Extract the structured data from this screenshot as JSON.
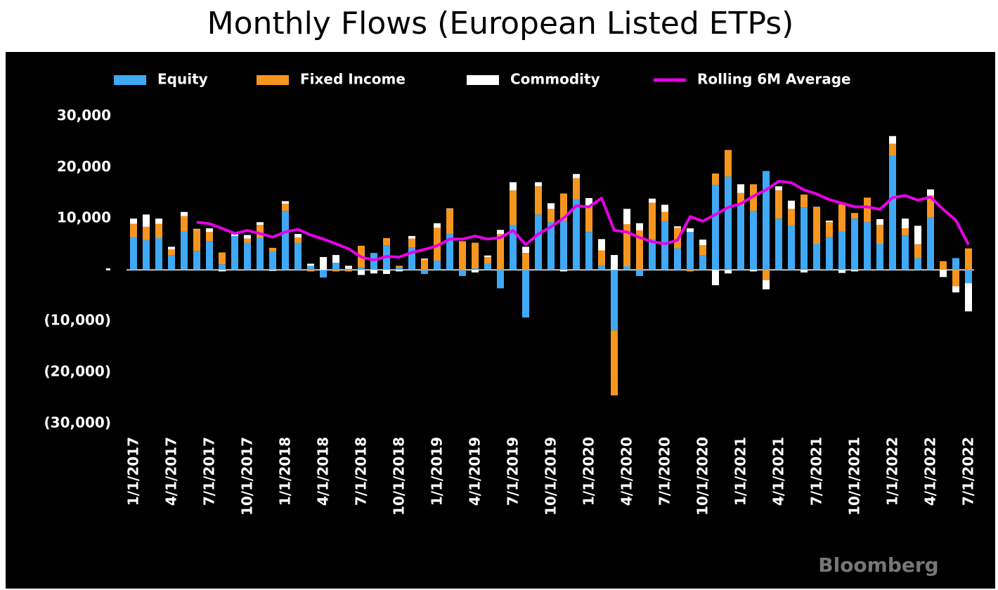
{
  "chart_data": {
    "type": "bar",
    "stacked": true,
    "title": "Monthly Flows (European Listed ETPs)",
    "watermark": "Bloomberg",
    "categories": [
      "1/1/2017",
      null,
      null,
      "4/1/2017",
      null,
      null,
      "7/1/2017",
      null,
      null,
      "10/1/2017",
      null,
      null,
      "1/1/2018",
      null,
      null,
      "4/1/2018",
      null,
      null,
      "7/1/2018",
      null,
      null,
      "10/1/2018",
      null,
      null,
      "1/1/2019",
      null,
      null,
      "4/1/2019",
      null,
      null,
      "7/1/2019",
      null,
      null,
      "10/1/2019",
      null,
      null,
      "1/1/2020",
      null,
      null,
      "4/1/2020",
      null,
      null,
      "7/1/2020",
      null,
      null,
      "10/1/2020",
      null,
      null,
      "1/1/2021",
      null,
      null,
      "4/1/2021",
      null,
      null,
      "7/1/2021",
      null,
      null,
      "10/1/2021",
      null,
      null,
      "1/1/2022",
      null,
      null,
      "4/1/2022",
      null,
      null,
      "7/1/2022"
    ],
    "series": [
      {
        "name": "Equity",
        "color": "#3fa9f5",
        "values": [
          6400,
          5800,
          6200,
          2900,
          7500,
          3700,
          5600,
          1100,
          6600,
          5300,
          6200,
          3600,
          11500,
          5300,
          800,
          -1500,
          1400,
          200,
          500,
          3300,
          4800,
          500,
          4400,
          -800,
          1800,
          7000,
          -1200,
          300,
          1200,
          -3600,
          8800,
          -9300,
          10800,
          9300,
          9600,
          13800,
          7400,
          800,
          -11800,
          700,
          -1200,
          6000,
          9500,
          4200,
          7400,
          2900,
          16600,
          18200,
          12500,
          11500,
          19300,
          10000,
          8600,
          12200,
          5100,
          6400,
          7500,
          10000,
          9300,
          5100,
          22300,
          6700,
          2300,
          10300,
          0,
          2300,
          -2600
        ]
      },
      {
        "name": "Fixed Income",
        "color": "#f7961e",
        "values": [
          2600,
          2600,
          2800,
          1100,
          3000,
          4200,
          1800,
          2300,
          0,
          800,
          2600,
          700,
          1400,
          1000,
          -300,
          0,
          -300,
          -300,
          4200,
          0,
          1400,
          300,
          1700,
          2000,
          6400,
          4900,
          5600,
          5000,
          1300,
          7000,
          6700,
          3300,
          5500,
          2600,
          5300,
          4100,
          4800,
          3000,
          -12700,
          8200,
          7700,
          7100,
          1800,
          4000,
          -300,
          1900,
          2200,
          5200,
          2500,
          5200,
          -2000,
          5500,
          3300,
          2500,
          7100,
          2900,
          5300,
          1100,
          4800,
          3700,
          2300,
          1400,
          2700,
          4200,
          1700,
          -3200,
          4200
        ]
      },
      {
        "name": "Commodity",
        "color": "#ffffff",
        "values": [
          1000,
          2400,
          1000,
          500,
          800,
          100,
          700,
          -300,
          400,
          700,
          500,
          -200,
          500,
          700,
          400,
          2500,
          1500,
          600,
          -1000,
          -700,
          -800,
          -300,
          500,
          200,
          900,
          100,
          0,
          -500,
          300,
          800,
          1600,
          1200,
          800,
          1100,
          -300,
          800,
          1800,
          2200,
          2900,
          3000,
          1400,
          800,
          1400,
          300,
          700,
          1100,
          -3000,
          -700,
          1700,
          -300,
          -1800,
          800,
          1600,
          -500,
          100,
          300,
          -600,
          -300,
          0,
          1100,
          1500,
          1900,
          3600,
          1200,
          -1400,
          -1200,
          -5500
        ]
      },
      {
        "name": "Rolling 6M Average",
        "type": "line",
        "color": "#e600e6",
        "values": [
          null,
          null,
          null,
          null,
          null,
          9300,
          9000,
          8100,
          7100,
          7700,
          7100,
          6400,
          7400,
          7900,
          6800,
          6000,
          5100,
          4100,
          2500,
          1900,
          2600,
          2500,
          3400,
          4000,
          4700,
          6000,
          6000,
          6600,
          6000,
          6300,
          7700,
          4900,
          7000,
          8400,
          10100,
          12500,
          12300,
          14000,
          7700,
          7400,
          6300,
          5500,
          5100,
          5800,
          10400,
          9500,
          10800,
          12200,
          12900,
          14400,
          15600,
          17300,
          17000,
          15600,
          14800,
          13700,
          13000,
          12300,
          12300,
          11800,
          14100,
          14500,
          13600,
          14200,
          11800,
          9700,
          4900
        ]
      }
    ],
    "ylim": [
      -33000,
      31000
    ],
    "yticks": [
      {
        "value": 30000,
        "label": "30,000"
      },
      {
        "value": 20000,
        "label": "20,000"
      },
      {
        "value": 10000,
        "label": "10,000"
      },
      {
        "value": 0,
        "label": "-"
      },
      {
        "value": -10000,
        "label": "(10,000)"
      },
      {
        "value": -20000,
        "label": "(20,000)"
      },
      {
        "value": -30000,
        "label": "(30,000)"
      }
    ],
    "grid": false,
    "legend": "top"
  }
}
